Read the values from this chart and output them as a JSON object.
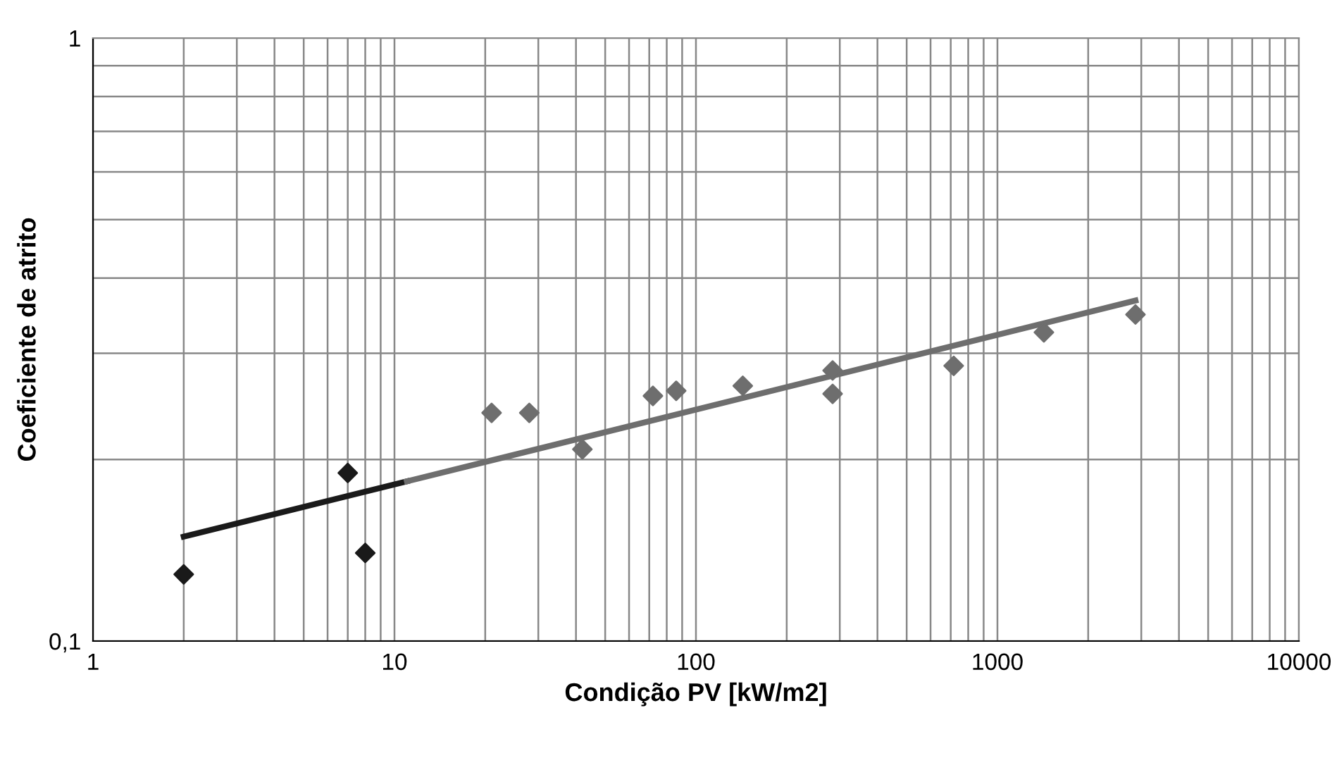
{
  "chart_data": {
    "type": "scatter",
    "xlabel": "Condição PV [kW/m2]",
    "ylabel": "Coeficiente de atrito",
    "log": "xy",
    "grid": true,
    "marker": "diamond",
    "legend": false,
    "xlim": [
      1,
      10000
    ],
    "ylim": [
      0.1,
      1
    ],
    "xticks": [
      1,
      10,
      100,
      1000,
      10000
    ],
    "yticks": [
      {
        "value": 0.1,
        "label": "0,1"
      },
      1
    ],
    "series": [
      {
        "color": "#1a1a1a",
        "x": [
          2,
          7,
          8
        ],
        "values": [
          0.129,
          0.19,
          0.14
        ]
      },
      {
        "color": "#6e6e6e",
        "x": [
          21,
          28,
          42,
          72,
          86,
          143,
          284,
          284,
          716,
          1426,
          2870
        ],
        "values": [
          0.239,
          0.239,
          0.208,
          0.255,
          0.26,
          0.265,
          0.281,
          0.257,
          0.286,
          0.325,
          0.348
        ]
      },
      {
        "type": "line",
        "color": "#1a1a1a",
        "marker": "none",
        "x": [
          2,
          11
        ],
        "values": [
          0.149,
          0.184
        ]
      },
      {
        "type": "line",
        "color": "#6e6e6e",
        "marker": "none",
        "x": [
          11,
          2870
        ],
        "values": [
          0.184,
          0.367
        ]
      }
    ]
  }
}
